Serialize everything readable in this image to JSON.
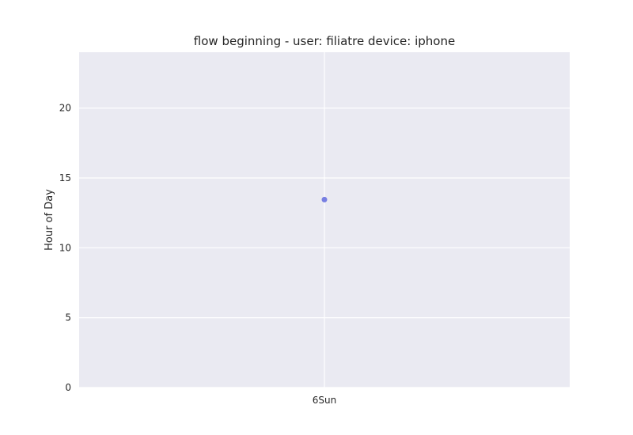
{
  "chart_data": {
    "type": "scatter",
    "title": "flow beginning - user: filiatre device: iphone",
    "xlabel": "",
    "ylabel": "Hour of Day",
    "x_categories": [
      "6Sun"
    ],
    "yticks": [
      0,
      5,
      10,
      15,
      20
    ],
    "ylim": [
      0,
      24
    ],
    "grid": true,
    "legend": "none",
    "series": [
      {
        "points": [
          {
            "x": "6Sun",
            "y": 13.45
          }
        ]
      }
    ],
    "colors": {
      "background": "#EAEAF2",
      "grid": "#FFFFFF",
      "point": "#6A72E0"
    }
  }
}
